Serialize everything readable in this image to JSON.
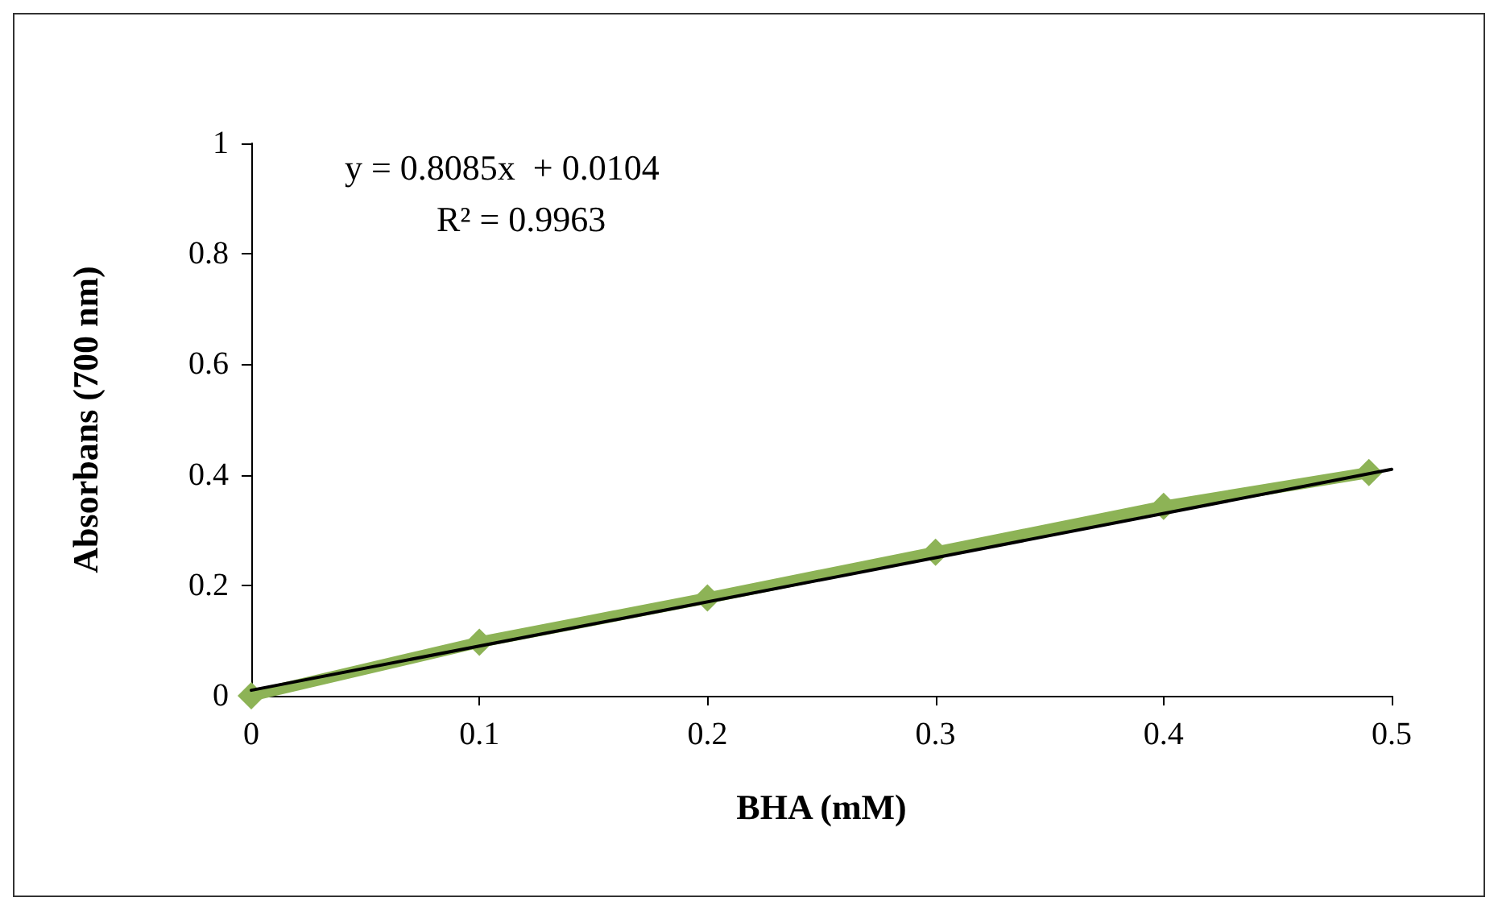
{
  "chart_data": {
    "type": "line",
    "xlabel": "BHA (mM)",
    "ylabel": "Absorbans (700 nm)",
    "annotations": [
      "y = 0.8085x  + 0.0104",
      "R² = 0.9963"
    ],
    "x": [
      0,
      0.1,
      0.2,
      0.3,
      0.4,
      0.49
    ],
    "series": [
      {
        "color": "#8db356",
        "values": [
          0,
          0.097,
          0.177,
          0.26,
          0.343,
          0.404
        ],
        "marker": "diamond"
      },
      {
        "type": "line",
        "color": "#000000",
        "x": [
          0,
          0.5
        ],
        "values": [
          0.01,
          0.41
        ],
        "marker": "none"
      }
    ],
    "xlim": [
      0,
      0.5
    ],
    "xticks": [
      0,
      0.1,
      0.2,
      0.3,
      0.4,
      0.5
    ],
    "ylim": [
      0,
      1
    ],
    "yticks": [
      0,
      0.2,
      0.4,
      0.6,
      0.8,
      1
    ],
    "grid": false,
    "line_style": "solid"
  }
}
